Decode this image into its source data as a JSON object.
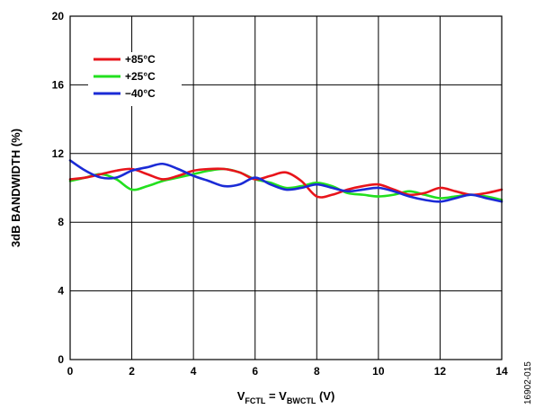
{
  "chart_data": {
    "type": "line",
    "xlabel": {
      "main": "V",
      "sub1": "FCTL",
      "mid": " = V",
      "sub2": "BWCTL",
      "tail": " (V)"
    },
    "ylabel": "3dB BANDWIDTH (%)",
    "xlim": [
      0,
      14
    ],
    "ylim": [
      0,
      20
    ],
    "xticks": [
      0,
      2,
      4,
      6,
      8,
      10,
      12,
      14
    ],
    "yticks": [
      0,
      4,
      8,
      12,
      16,
      20
    ],
    "grid": true,
    "legend_position": "top-left",
    "figure_id": "16902-015",
    "series": [
      {
        "name": "+85°C",
        "color": "#e8141b",
        "x": [
          0,
          0.5,
          1,
          1.5,
          2,
          2.5,
          3,
          3.5,
          4,
          4.5,
          5,
          5.5,
          6,
          6.5,
          7,
          7.5,
          8,
          8.5,
          9,
          9.5,
          10,
          10.5,
          11,
          11.5,
          12,
          12.5,
          13,
          13.5,
          14
        ],
        "y": [
          10.5,
          10.6,
          10.8,
          11.0,
          11.1,
          10.8,
          10.5,
          10.7,
          11.0,
          11.1,
          11.1,
          10.9,
          10.5,
          10.7,
          10.9,
          10.4,
          9.5,
          9.6,
          9.9,
          10.1,
          10.2,
          9.9,
          9.6,
          9.7,
          10.0,
          9.8,
          9.6,
          9.7,
          9.9
        ]
      },
      {
        "name": "+25°C",
        "color": "#22e01e",
        "x": [
          0,
          0.5,
          1,
          1.5,
          2,
          2.5,
          3,
          3.5,
          4,
          4.5,
          5,
          5.5,
          6,
          6.5,
          7,
          7.5,
          8,
          8.5,
          9,
          9.5,
          10,
          10.5,
          11,
          11.5,
          12,
          12.5,
          13,
          13.5,
          14
        ],
        "y": [
          10.4,
          10.6,
          10.8,
          10.5,
          9.9,
          10.1,
          10.4,
          10.6,
          10.8,
          11.0,
          11.1,
          10.9,
          10.5,
          10.3,
          10.0,
          10.1,
          10.3,
          10.1,
          9.7,
          9.6,
          9.5,
          9.6,
          9.8,
          9.6,
          9.4,
          9.5,
          9.6,
          9.5,
          9.3
        ]
      },
      {
        "name": "−40°C",
        "color": "#1b2bd6",
        "x": [
          0,
          0.5,
          1,
          1.5,
          2,
          2.5,
          3,
          3.5,
          4,
          4.5,
          5,
          5.5,
          6,
          6.5,
          7,
          7.5,
          8,
          8.5,
          9,
          9.5,
          10,
          10.5,
          11,
          11.5,
          12,
          12.5,
          13,
          13.5,
          14
        ],
        "y": [
          11.6,
          11.0,
          10.6,
          10.6,
          11.0,
          11.2,
          11.4,
          11.1,
          10.7,
          10.4,
          10.1,
          10.2,
          10.6,
          10.2,
          9.9,
          10.0,
          10.2,
          10.0,
          9.8,
          9.9,
          10.0,
          9.8,
          9.5,
          9.3,
          9.2,
          9.4,
          9.6,
          9.4,
          9.2
        ]
      }
    ]
  }
}
